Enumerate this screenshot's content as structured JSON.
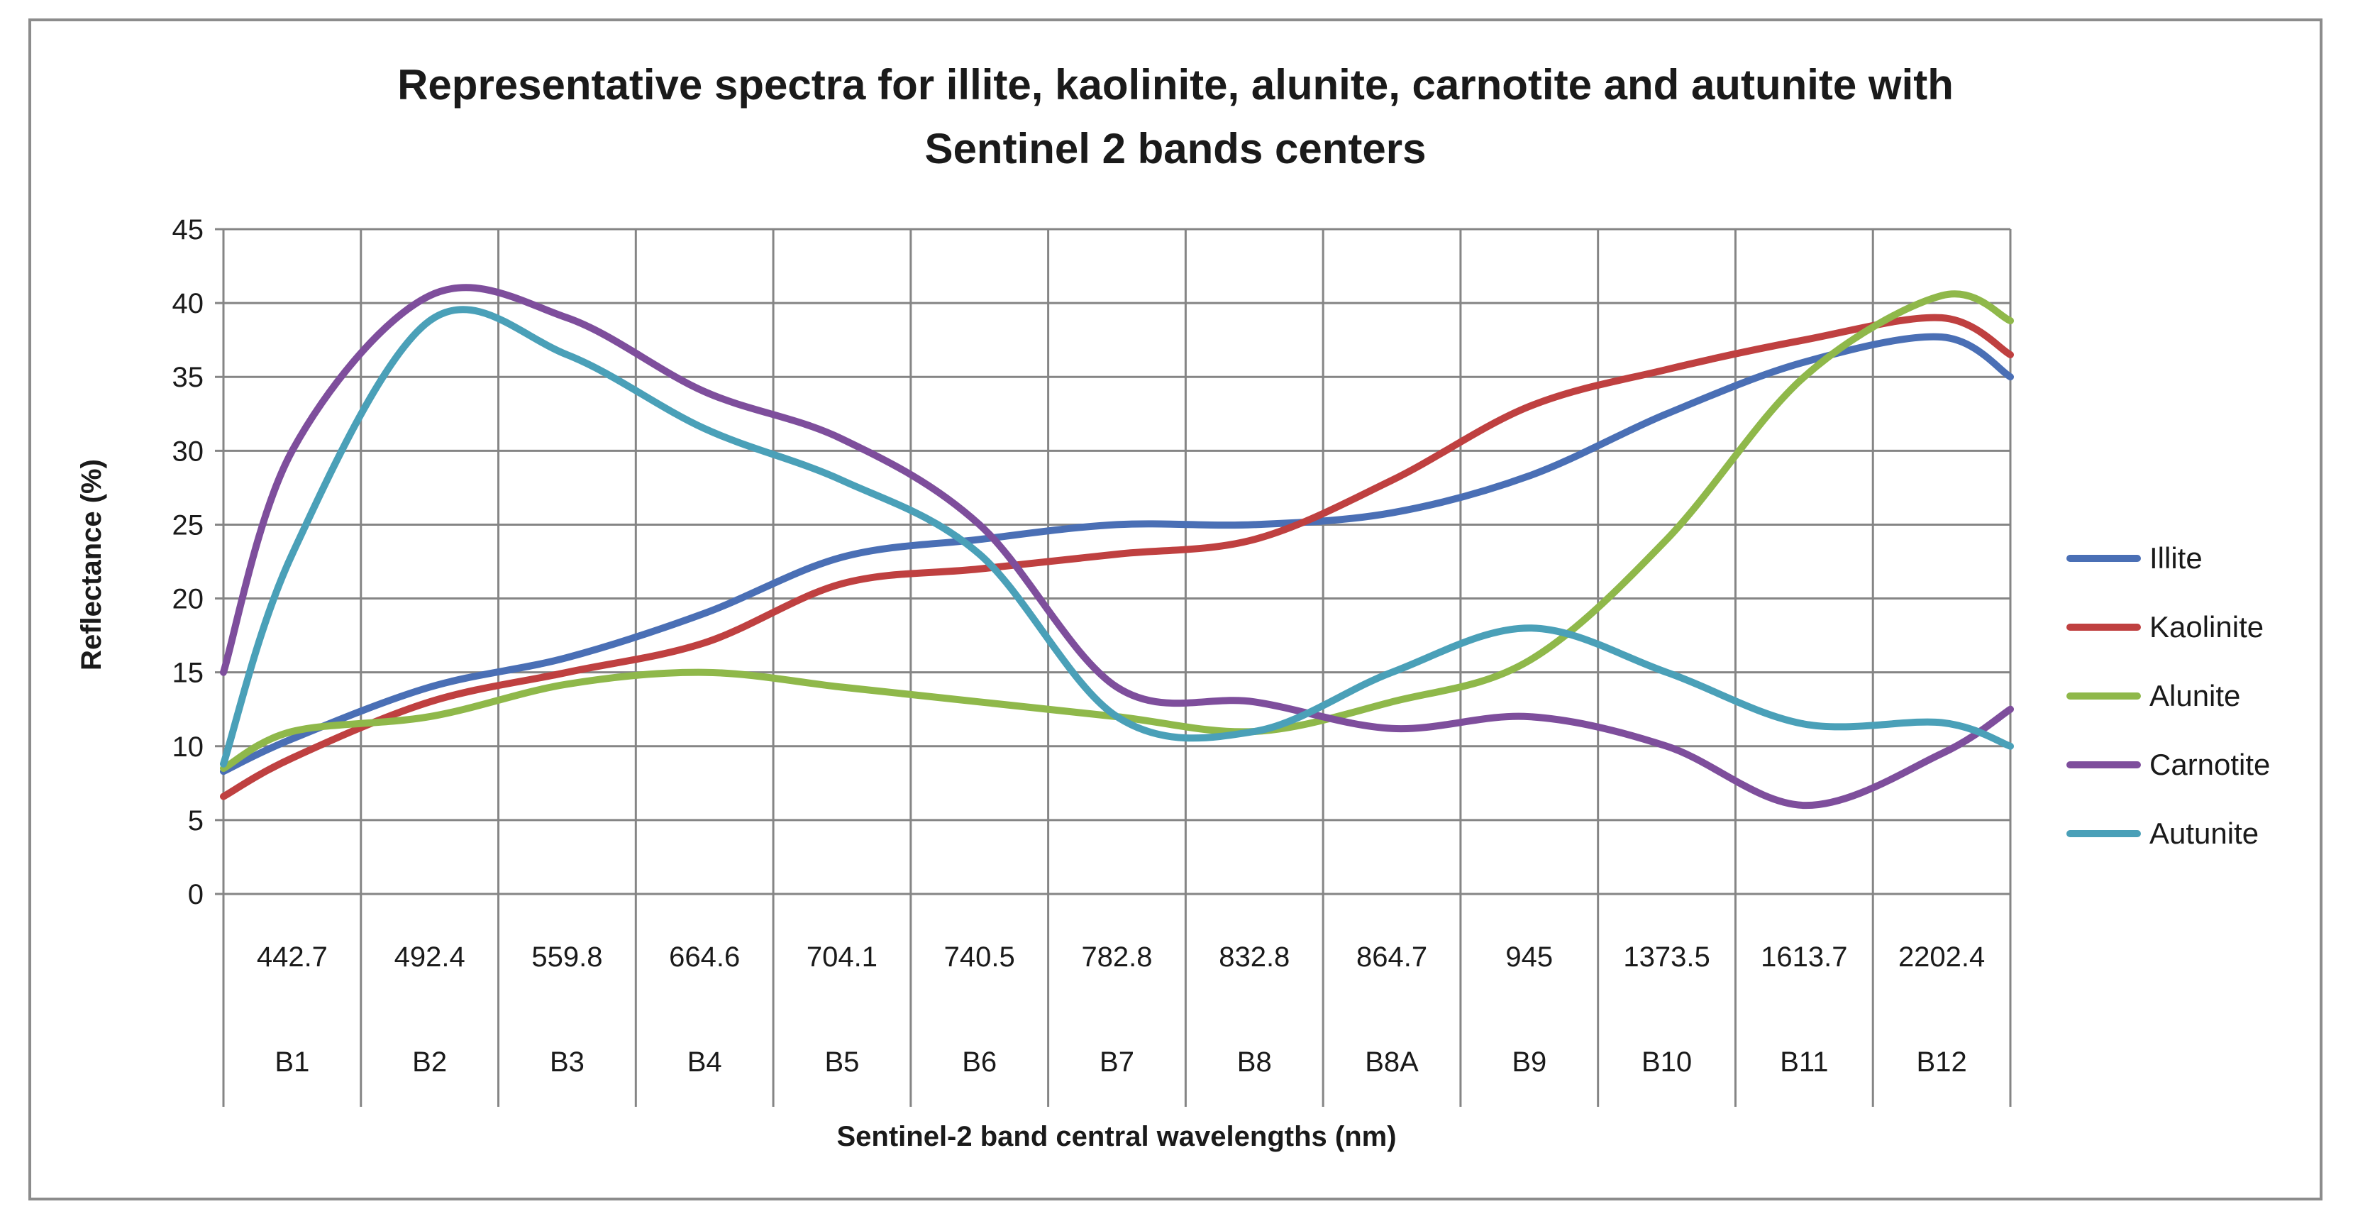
{
  "chart_data": {
    "type": "line",
    "title_lines": [
      "Representative spectra for illite, kaolinite, alunite, carnotite and autunite with",
      "Sentinel 2 bands centers"
    ],
    "ylabel": "Reflectance (%)",
    "xlabel": "Sentinel-2 band central wavelengths (nm)",
    "ylim": [
      0,
      45
    ],
    "yticks": [
      "0",
      "5",
      "10",
      "15",
      "20",
      "25",
      "30",
      "35",
      "40",
      "45"
    ],
    "grid": true,
    "legend_position": "right",
    "wavelengths": [
      "442.7",
      "492.4",
      "559.8",
      "664.6",
      "704.1",
      "740.5",
      "782.8",
      "832.8",
      "864.7",
      "945",
      "1373.5",
      "1613.7",
      "2202.4"
    ],
    "bands": [
      "B1",
      "B2",
      "B3",
      "B4",
      "B5",
      "B6",
      "B7",
      "B8",
      "B8A",
      "B9",
      "B10",
      "B11",
      "B12"
    ],
    "x": [
      0,
      0.5,
      1.5,
      2.5,
      3.5,
      4.5,
      5.5,
      6.5,
      7.5,
      8.5,
      9.5,
      10.5,
      11.5,
      12.5,
      13
    ],
    "series": [
      {
        "name": "Illite",
        "color": "#4a6fb5",
        "values": [
          8.3,
          10.5,
          14.0,
          16.0,
          19.0,
          22.8,
          24.0,
          25.0,
          25.0,
          25.8,
          28.3,
          32.5,
          36.0,
          37.7,
          35.0
        ]
      },
      {
        "name": "Kaolinite",
        "color": "#bf4040",
        "values": [
          6.6,
          9.2,
          13.0,
          15.0,
          17.0,
          21.0,
          22.0,
          23.0,
          24.0,
          28.0,
          33.0,
          35.5,
          37.5,
          39.0,
          36.5
        ]
      },
      {
        "name": "Alunite",
        "color": "#8fb84a",
        "values": [
          8.5,
          11.0,
          12.0,
          14.2,
          15.0,
          14.0,
          13.0,
          12.0,
          11.0,
          13.0,
          15.8,
          24.0,
          35.0,
          40.5,
          38.8
        ]
      },
      {
        "name": "Carnotite",
        "color": "#7e4e9c",
        "values": [
          15.0,
          30.0,
          40.5,
          39.0,
          34.0,
          30.8,
          25.0,
          14.0,
          13.0,
          11.2,
          12.0,
          10.0,
          6.0,
          9.5,
          12.5
        ]
      },
      {
        "name": "Autunite",
        "color": "#4aa0b8",
        "values": [
          8.8,
          23.0,
          38.8,
          36.5,
          31.5,
          28.0,
          23.0,
          12.0,
          11.0,
          15.0,
          18.0,
          15.0,
          11.5,
          11.6,
          10.0
        ]
      }
    ]
  }
}
